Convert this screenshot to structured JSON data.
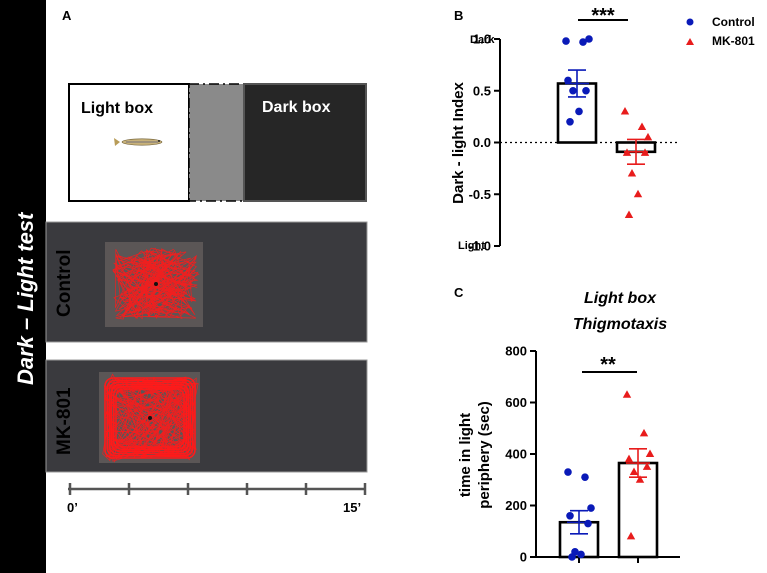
{
  "side_label": "Dark – Light test",
  "panel_a": {
    "letter": "A",
    "light_box_label": "Light box",
    "dark_box_label": "Dark box",
    "track_labels": [
      "Control",
      "MK-801"
    ],
    "timeline": {
      "start": "0’",
      "end": "15’",
      "ticks": 6
    },
    "colors": {
      "track": "#ff1a1a",
      "arena": "#3a3a3e",
      "dark_box": "#262626",
      "door": "#8a8a8a"
    }
  },
  "chart_data": [
    {
      "panel": "B",
      "type": "scatter",
      "title": "",
      "ylabel": "Dark - light Index",
      "ylim": [
        -1.0,
        1.0
      ],
      "yticks": [
        1.0,
        0.5,
        0.0,
        -0.5,
        -1.0
      ],
      "ytick_labels": [
        "1.0",
        "0.5",
        "0.0",
        "-0.5",
        "-1.0"
      ],
      "y_end_labels": {
        "top": "Dark",
        "bottom": "Light"
      },
      "categories": [
        "Control",
        "MK-801"
      ],
      "series": [
        {
          "name": "Control",
          "marker": "circle",
          "color": "#0a1ab8",
          "mean": 0.57,
          "sem": 0.13,
          "values": [
            0.98,
            0.97,
            1.0,
            0.6,
            0.5,
            0.5,
            0.3,
            0.2
          ]
        },
        {
          "name": "MK-801",
          "marker": "triangle",
          "color": "#e81c1c",
          "mean": -0.09,
          "sem": 0.12,
          "values": [
            0.3,
            0.15,
            0.05,
            -0.1,
            -0.1,
            -0.3,
            -0.5,
            -0.7
          ]
        }
      ],
      "significance": "***",
      "baseline_dotted": 0.0
    },
    {
      "panel": "C",
      "type": "scatter",
      "title": "Light box Thigmotaxis",
      "title_lines": [
        "Light box",
        "Thigmotaxis"
      ],
      "ylabel": "time in light periphery (sec)",
      "ylabel_lines": [
        "time in light",
        "periphery (sec)"
      ],
      "ylim": [
        0,
        800
      ],
      "yticks": [
        0,
        200,
        400,
        600,
        800
      ],
      "ytick_labels": [
        "0",
        "200",
        "400",
        "600",
        "800"
      ],
      "categories": [
        "Control",
        "MK-801"
      ],
      "series": [
        {
          "name": "Control",
          "marker": "circle",
          "color": "#0a1ab8",
          "mean": 135,
          "sem": 45,
          "values": [
            330,
            310,
            190,
            160,
            130,
            20,
            10,
            0
          ]
        },
        {
          "name": "MK-801",
          "marker": "triangle",
          "color": "#e81c1c",
          "mean": 365,
          "sem": 55,
          "values": [
            630,
            480,
            400,
            380,
            350,
            330,
            300,
            80
          ]
        }
      ],
      "significance": "**"
    }
  ],
  "legend": [
    {
      "name": "Control",
      "marker": "circle",
      "color": "#0a1ab8"
    },
    {
      "name": "MK-801",
      "marker": "triangle",
      "color": "#e81c1c"
    }
  ]
}
